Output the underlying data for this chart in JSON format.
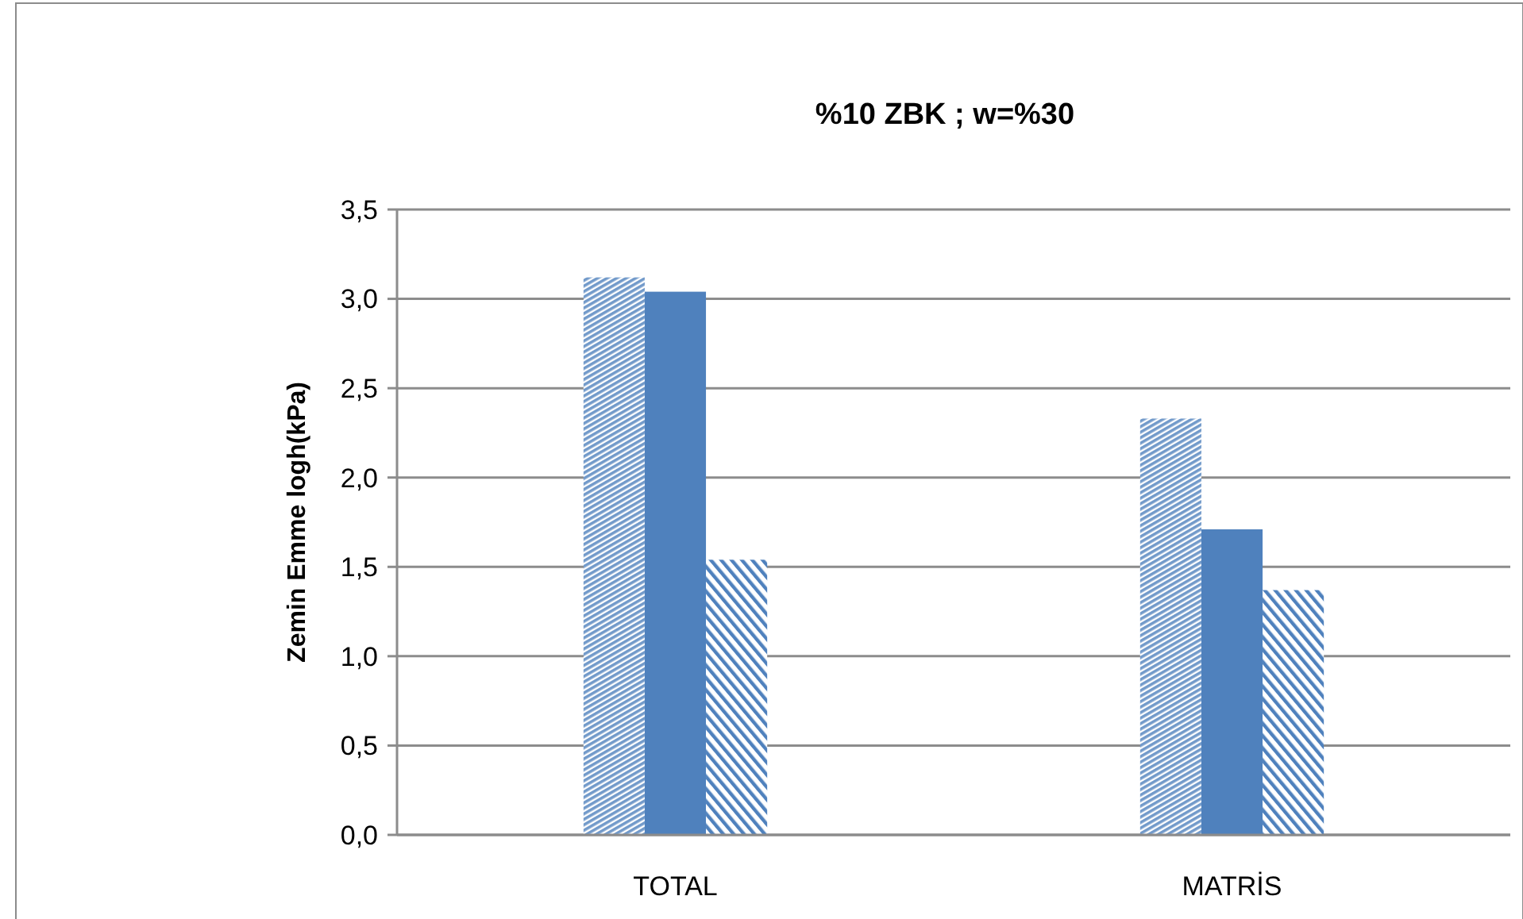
{
  "chart_data": {
    "type": "bar",
    "title": "%10 ZBK ; w=%30",
    "ylabel": "Zemin Emme  logh(kPa)",
    "categories": [
      "TOTAL",
      "MATRİS"
    ],
    "series": [
      {
        "color": "#4f81bd",
        "values": [
          3.12,
          2.33
        ]
      },
      {
        "color": "#4f81bd",
        "values": [
          3.04,
          1.71
        ]
      },
      {
        "color": "#4f81bd",
        "values": [
          1.54,
          1.37
        ]
      }
    ],
    "ylim": [
      0,
      3.5
    ],
    "yticks": [
      {
        "value": 0,
        "label": "0,0"
      },
      {
        "value": 0.5,
        "label": "0,5"
      },
      {
        "value": 1,
        "label": "1,0"
      },
      {
        "value": 1.5,
        "label": "1,5"
      },
      {
        "value": 2,
        "label": "2,0"
      },
      {
        "value": 2.5,
        "label": "2,5"
      },
      {
        "value": 3,
        "label": "3,0"
      },
      {
        "value": 3.5,
        "label": "3,5"
      }
    ],
    "grid": "y"
  }
}
